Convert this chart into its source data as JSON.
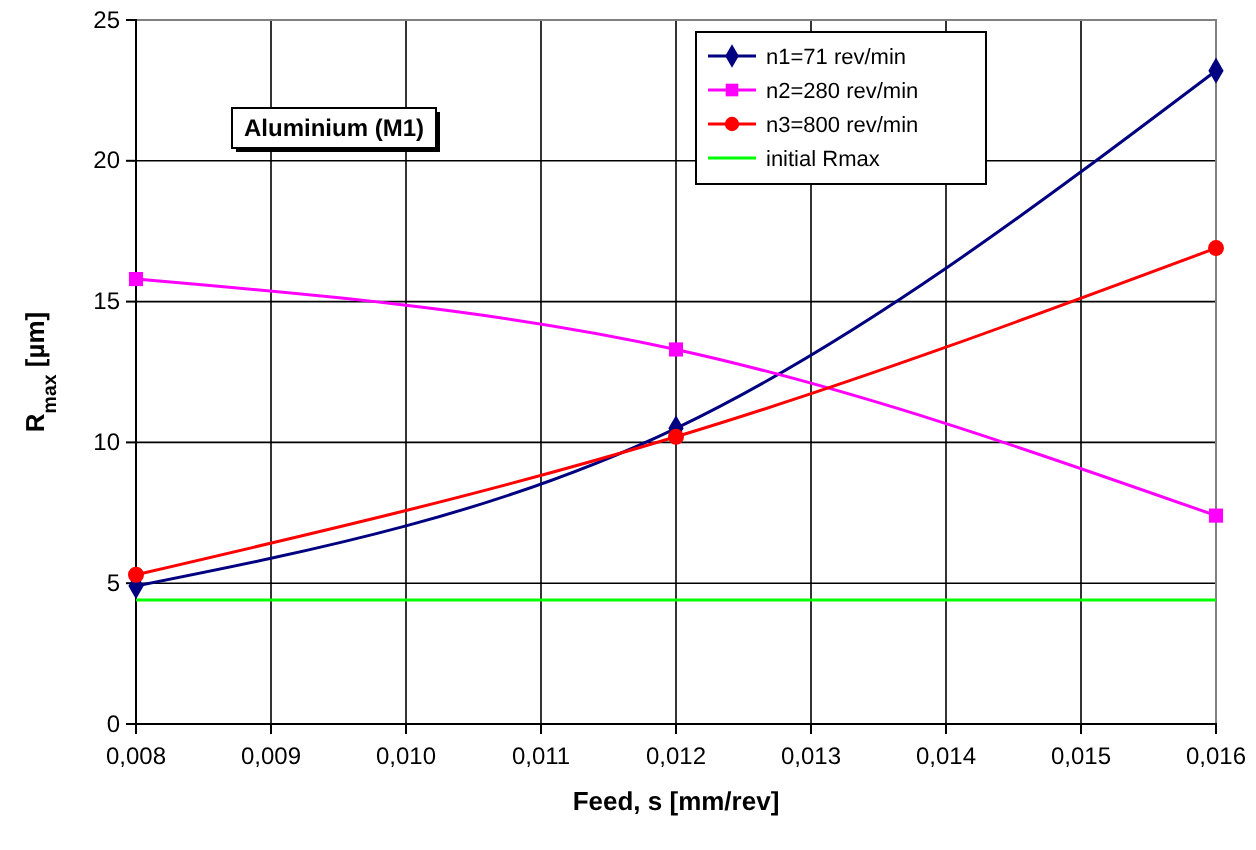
{
  "chart_data": {
    "type": "line",
    "xlabel": "Feed, s [mm/rev]",
    "ylabel": "R$_{max}$ [µm]",
    "annotations": [
      "Aluminium (M1)"
    ],
    "x": [
      0.008,
      0.012,
      0.016
    ],
    "series": [
      {
        "name": "n1=71 rev/min",
        "color": "#000080",
        "values": [
          4.9,
          10.5,
          23.2
        ],
        "marker": "diamond"
      },
      {
        "name": "n2=280 rev/min",
        "color": "#ff00ff",
        "values": [
          15.8,
          13.3,
          7.4
        ],
        "marker": "square"
      },
      {
        "name": "n3=800 rev/min",
        "color": "#ff0000",
        "values": [
          5.3,
          10.2,
          16.9
        ],
        "marker": "circle"
      },
      {
        "name": "initial Rmax",
        "color": "#00ff00",
        "values": [
          4.4,
          4.4,
          4.4
        ],
        "marker": "none"
      }
    ],
    "xlim": [
      0.008,
      0.016
    ],
    "xticks": [
      {
        "value": 0.008,
        "label": "0,008"
      },
      {
        "value": 0.009,
        "label": "0,009"
      },
      {
        "value": 0.01,
        "label": "0,010"
      },
      {
        "value": 0.011,
        "label": "0,011"
      },
      {
        "value": 0.012,
        "label": "0,012"
      },
      {
        "value": 0.013,
        "label": "0,013"
      },
      {
        "value": 0.014,
        "label": "0,014"
      },
      {
        "value": 0.015,
        "label": "0,015"
      },
      {
        "value": 0.016,
        "label": "0,016"
      }
    ],
    "ylim": [
      0,
      25
    ],
    "yticks": [
      0,
      5,
      10,
      15,
      20,
      25
    ],
    "grid": true,
    "legend": "top right"
  }
}
